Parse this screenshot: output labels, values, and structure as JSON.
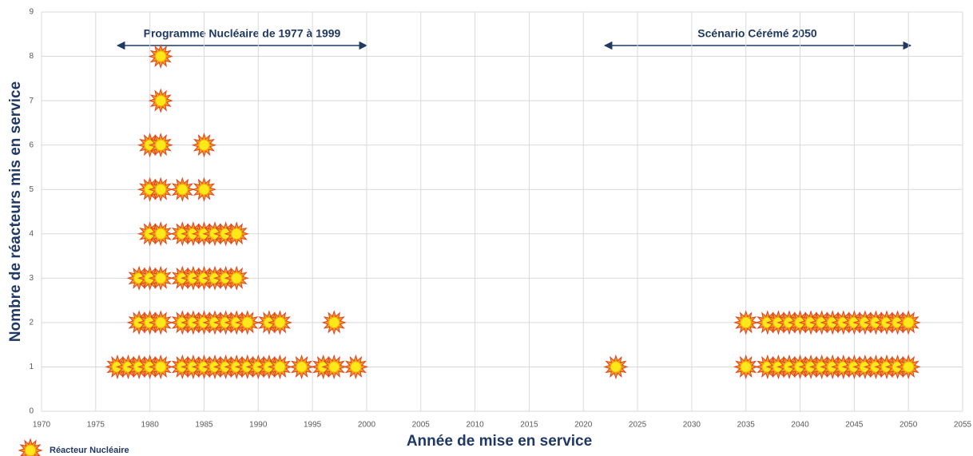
{
  "chart_data": {
    "type": "scatter",
    "xlabel": "Année de mise en service",
    "ylabel": "Nombre de réacteurs mis en service",
    "annotations": [
      "Programme Nucléaire de 1977 à 1999",
      "Scénario Cérémé 2050"
    ],
    "series": [
      {
        "name": "Réacteur Nucléaire",
        "color": "#f39a1e",
        "x": [
          1977,
          1978,
          1979,
          1980,
          1981,
          1983,
          1984,
          1985,
          1986,
          1987,
          1988,
          1989,
          1990,
          1991,
          1992,
          1994,
          1996,
          1997,
          1999,
          2023,
          2035,
          2037,
          2038,
          2039,
          2040,
          2041,
          2042,
          2043,
          2044,
          2045,
          2046,
          2047,
          2048,
          2049,
          2050
        ],
        "values": [
          1,
          1,
          3,
          6,
          8,
          5,
          4,
          6,
          4,
          4,
          4,
          2,
          1,
          2,
          2,
          1,
          1,
          2,
          1,
          1,
          2,
          2,
          2,
          2,
          2,
          2,
          2,
          2,
          2,
          2,
          2,
          2,
          2,
          2,
          2
        ]
      }
    ],
    "xlim": [
      1970,
      2055
    ],
    "xticks": [
      1970,
      1975,
      1980,
      1985,
      1990,
      1995,
      2000,
      2005,
      2010,
      2015,
      2020,
      2025,
      2030,
      2035,
      2040,
      2045,
      2050,
      2055
    ],
    "ylim": [
      0,
      9
    ],
    "yticks": [
      0,
      1,
      2,
      3,
      4,
      5,
      6,
      7,
      8,
      9
    ],
    "grid": true
  }
}
